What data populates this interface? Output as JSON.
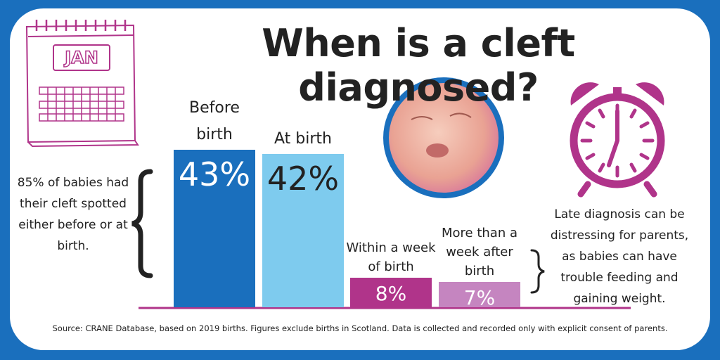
{
  "chart_data": {
    "type": "bar",
    "title": "When is a cleft diagnosed?",
    "categories": [
      "Before birth",
      "At birth",
      "Within a week of birth",
      "More than a week after birth"
    ],
    "values": [
      43,
      42,
      8,
      7
    ],
    "value_labels": [
      "43%",
      "42%",
      "8%",
      "7%"
    ],
    "colors": [
      "#1a6fbd",
      "#7ecbee",
      "#b0348a",
      "#c585c0"
    ],
    "value_label_colors": [
      "#ffffff",
      "#222222",
      "#ffffff",
      "#ffffff"
    ],
    "annotations": {
      "calendar": "JAN",
      "left_note": "85% of babies had their cleft spotted either before or at birth.",
      "right_note": "Late diagnosis can be distressing for parents, as babies can have trouble feeding and gaining weight.",
      "source": "Source: CRANE Database, based on 2019 births. Figures exclude births in Scotland. Data is collected and recorded only with explicit consent of parents."
    }
  }
}
